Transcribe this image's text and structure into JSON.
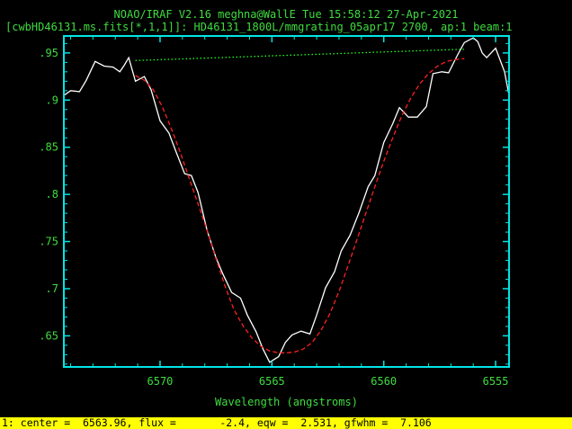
{
  "header": {
    "title_line1": "NOAO/IRAF V2.16 meghna@WallE Tue 15:58:12 27-Apr-2021",
    "title_line2": "[cwbHD46131.ms.fits[*,1,1]]: HD46131_1800L/mmgrating_05apr17 2700, ap:1 beam:1"
  },
  "status": {
    "text": "1: center =  6563.96, flux =       -2.4, eqw =  2.531, gfwhm =  7.106"
  },
  "colors": {
    "axis": "#00e5e5",
    "text": "#3fdc3f",
    "spectrum": "#ffffff",
    "fit": "#ff2020",
    "continuum": "#20ff20",
    "status_bg": "#ffff00"
  },
  "chart_data": {
    "type": "line",
    "xlabel": "Wavelength (angstroms)",
    "ylabel": "",
    "xlim": [
      6574.3,
      6554.4
    ],
    "ylim": [
      0.617,
      0.968
    ],
    "x_ticks": [
      6570,
      6565,
      6560,
      6555
    ],
    "x_tick_labels": [
      "6570",
      "6565",
      "6560",
      "6555"
    ],
    "y_ticks": [
      0.65,
      0.7,
      0.75,
      0.8,
      0.85,
      0.9,
      0.95
    ],
    "y_tick_labels": [
      ".65",
      ".7",
      ".75",
      ".8",
      ".85",
      ".9",
      ".95"
    ],
    "series": [
      {
        "role": "spectrum",
        "x": [
          6574.3,
          6574.0,
          6573.6,
          6573.3,
          6572.9,
          6572.5,
          6572.1,
          6571.8,
          6571.6,
          6571.4,
          6571.1,
          6570.7,
          6570.4,
          6570.0,
          6569.6,
          6569.3,
          6568.9,
          6568.6,
          6568.3,
          6567.9,
          6567.5,
          6567.2,
          6566.8,
          6566.4,
          6566.1,
          6565.7,
          6565.4,
          6565.1,
          6564.7,
          6564.4,
          6564.1,
          6563.7,
          6563.3,
          6563.0,
          6562.6,
          6562.2,
          6561.9,
          6561.5,
          6561.1,
          6560.7,
          6560.4,
          6560.0,
          6559.6,
          6559.3,
          6558.9,
          6558.5,
          6558.1,
          6557.8,
          6557.4,
          6557.1,
          6556.7,
          6556.4,
          6556.0,
          6555.8,
          6555.6,
          6555.4,
          6555.0,
          6554.6,
          6554.4
        ],
        "values": [
          0.905,
          0.91,
          0.909,
          0.921,
          0.941,
          0.936,
          0.935,
          0.93,
          0.937,
          0.945,
          0.92,
          0.925,
          0.911,
          0.878,
          0.865,
          0.846,
          0.822,
          0.82,
          0.802,
          0.762,
          0.733,
          0.716,
          0.696,
          0.69,
          0.672,
          0.654,
          0.636,
          0.622,
          0.628,
          0.643,
          0.651,
          0.655,
          0.652,
          0.672,
          0.701,
          0.718,
          0.74,
          0.757,
          0.781,
          0.808,
          0.82,
          0.855,
          0.875,
          0.892,
          0.882,
          0.882,
          0.893,
          0.928,
          0.93,
          0.929,
          0.948,
          0.961,
          0.966,
          0.962,
          0.95,
          0.945,
          0.955,
          0.93,
          0.905
        ]
      },
      {
        "role": "gaussian-fit",
        "x": [
          6571.1,
          6570.7,
          6570.3,
          6569.9,
          6569.5,
          6569.1,
          6568.7,
          6568.3,
          6567.9,
          6567.5,
          6567.1,
          6566.7,
          6566.3,
          6565.9,
          6565.5,
          6565.1,
          6564.7,
          6564.3,
          6563.96,
          6563.6,
          6563.2,
          6562.8,
          6562.4,
          6562.0,
          6561.6,
          6561.2,
          6560.8,
          6560.4,
          6560.0,
          6559.6,
          6559.2,
          6558.8,
          6558.4,
          6558.0,
          6557.6,
          6557.2,
          6556.8,
          6556.4
        ],
        "values": [
          0.926,
          0.921,
          0.911,
          0.893,
          0.87,
          0.845,
          0.817,
          0.79,
          0.762,
          0.732,
          0.703,
          0.678,
          0.661,
          0.648,
          0.639,
          0.634,
          0.632,
          0.632,
          0.633,
          0.636,
          0.643,
          0.656,
          0.674,
          0.697,
          0.724,
          0.752,
          0.78,
          0.808,
          0.835,
          0.86,
          0.883,
          0.902,
          0.917,
          0.928,
          0.936,
          0.941,
          0.943,
          0.944
        ]
      },
      {
        "role": "continuum",
        "x": [
          6571.1,
          6556.4
        ],
        "values": [
          0.942,
          0.954
        ]
      }
    ]
  }
}
